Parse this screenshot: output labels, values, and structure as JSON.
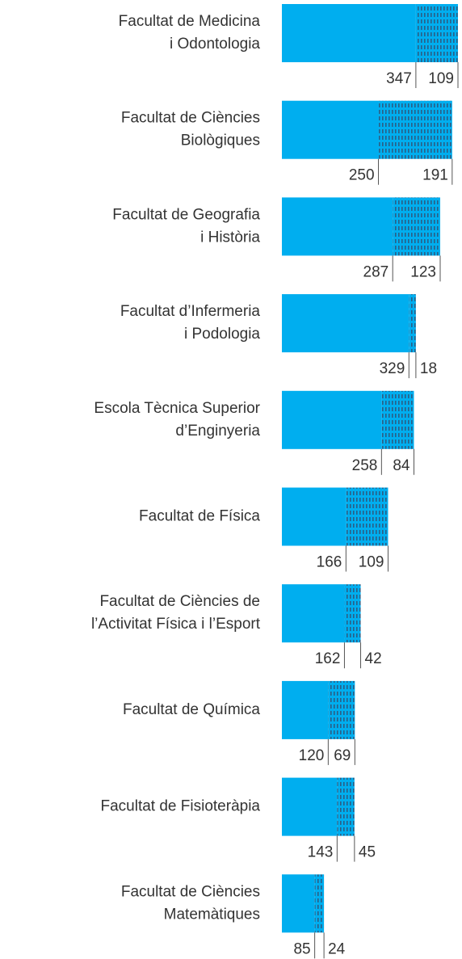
{
  "chart_data": {
    "type": "stacked-bar-horizontal",
    "categories": [
      [
        "Facultat de Medicina",
        "i Odontologia"
      ],
      [
        "Facultat de Ciències",
        "Biològiques"
      ],
      [
        "Facultat de Geografia",
        "i Història"
      ],
      [
        "Facultat d’Infermeria",
        "i Podologia"
      ],
      [
        "Escola Tècnica Superior",
        "d’Enginyeria"
      ],
      [
        "Facultat de Física"
      ],
      [
        "Facultat de Ciències de",
        "l’Activitat Física i l’Esport"
      ],
      [
        "Facultat de Química"
      ],
      [
        "Facultat de Fisioteràpia"
      ],
      [
        "Facultat de Ciències",
        "Matemàtiques"
      ]
    ],
    "series": [
      {
        "color": "#00aeef",
        "values": [
          347,
          250,
          287,
          329,
          258,
          166,
          162,
          120,
          143,
          85
        ]
      },
      {
        "color": "#2a5f86",
        "values": [
          109,
          191,
          123,
          18,
          84,
          109,
          42,
          69,
          45,
          24
        ]
      }
    ]
  }
}
